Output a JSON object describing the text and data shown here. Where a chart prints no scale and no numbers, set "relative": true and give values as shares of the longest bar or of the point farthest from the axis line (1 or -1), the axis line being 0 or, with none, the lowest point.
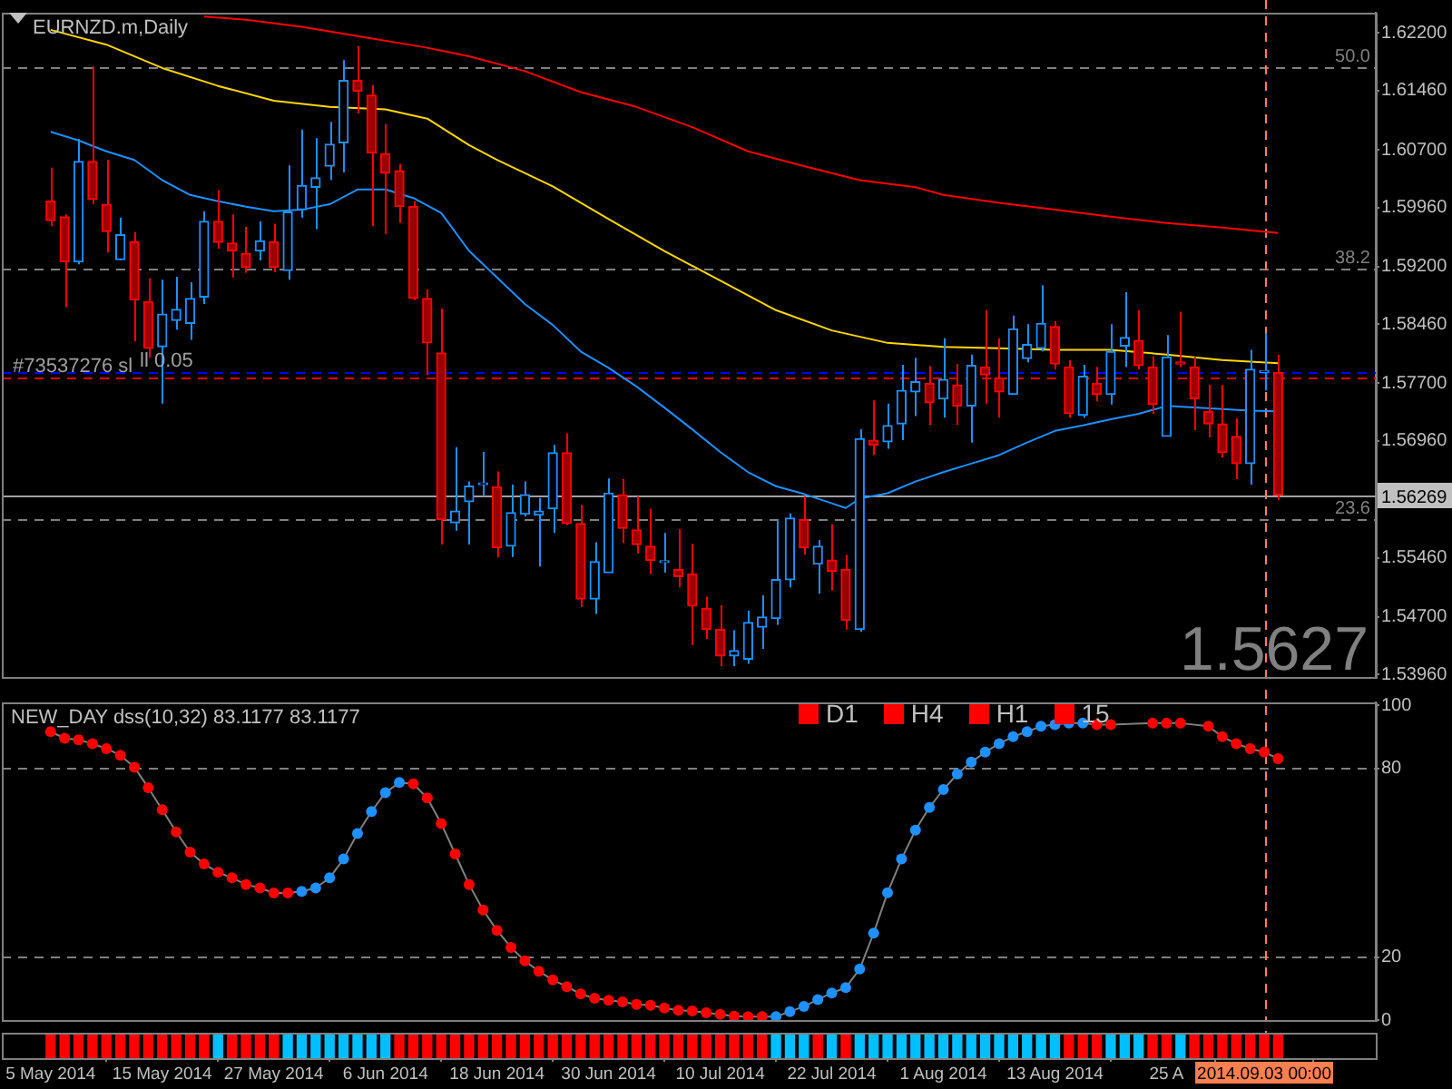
{
  "chart_data": [
    {
      "type": "candlestick",
      "title": "EURNZD.m,Daily",
      "tick_labels": "y",
      "marker": "none",
      "categories": [
        "5 May 2014",
        null,
        null,
        null,
        null,
        null,
        null,
        null,
        "15 May 2014",
        null,
        null,
        null,
        null,
        null,
        null,
        null,
        "27 May 2014",
        null,
        null,
        null,
        null,
        null,
        null,
        null,
        "6 Jun 2014",
        null,
        null,
        null,
        null,
        null,
        null,
        null,
        "18 Jun 2014",
        null,
        null,
        null,
        null,
        null,
        null,
        null,
        "30 Jun 2014",
        null,
        null,
        null,
        null,
        null,
        null,
        null,
        "10 Jul 2014",
        null,
        null,
        null,
        null,
        null,
        null,
        null,
        "22 Jul 2014",
        null,
        null,
        null,
        null,
        null,
        null,
        null,
        "1 Aug 2014",
        null,
        null,
        null,
        null,
        null,
        null,
        null,
        "13 Aug 2014",
        null,
        null,
        null,
        null,
        null,
        null,
        null,
        "25 A",
        null,
        null,
        null,
        null,
        null,
        null,
        "2014.09.03 00:00",
        null
      ],
      "ohlc": [
        [
          1.6004,
          1.6047,
          1.5972,
          1.5979
        ],
        [
          1.5984,
          1.5987,
          1.5868,
          1.5926
        ],
        [
          1.5926,
          1.6084,
          1.5923,
          1.6055
        ],
        [
          1.6055,
          1.6177,
          1.6,
          1.6006
        ],
        [
          1.6,
          1.6057,
          1.5938,
          1.5965
        ],
        [
          1.5929,
          1.5983,
          1.5928,
          1.5961
        ],
        [
          1.5952,
          1.5964,
          1.5824,
          1.5877
        ],
        [
          1.5875,
          1.5905,
          1.5803,
          1.5815
        ],
        [
          1.5817,
          1.5903,
          1.5744,
          1.5859
        ],
        [
          1.5851,
          1.5907,
          1.5839,
          1.5865
        ],
        [
          1.5847,
          1.59,
          1.5826,
          1.5879
        ],
        [
          1.5881,
          1.5991,
          1.5872,
          1.5978
        ],
        [
          1.5978,
          1.6018,
          1.5943,
          1.5951
        ],
        [
          1.595,
          1.5987,
          1.5906,
          1.594
        ],
        [
          1.5937,
          1.5971,
          1.5912,
          1.5919
        ],
        [
          1.594,
          1.5978,
          1.5928,
          1.5953
        ],
        [
          1.5952,
          1.5975,
          1.5913,
          1.5919
        ],
        [
          1.5915,
          1.605,
          1.5903,
          1.599
        ],
        [
          1.5993,
          1.6096,
          1.5983,
          1.6024
        ],
        [
          1.6022,
          1.6085,
          1.5968,
          1.6034
        ],
        [
          1.6049,
          1.6106,
          1.6031,
          1.6077
        ],
        [
          1.6079,
          1.6185,
          1.6041,
          1.6159
        ],
        [
          1.6159,
          1.6203,
          1.6117,
          1.6145
        ],
        [
          1.614,
          1.6153,
          1.5972,
          1.6066
        ],
        [
          1.6065,
          1.6103,
          1.5962,
          1.604
        ],
        [
          1.6043,
          1.6052,
          1.5976,
          1.5997
        ],
        [
          1.5997,
          1.6004,
          1.5877,
          1.5879
        ],
        [
          1.5879,
          1.5891,
          1.5781,
          1.5822
        ],
        [
          1.5809,
          1.5866,
          1.5563,
          1.5595
        ],
        [
          1.5591,
          1.5688,
          1.5581,
          1.5606
        ],
        [
          1.5618,
          1.5644,
          1.5563,
          1.5638
        ],
        [
          1.564,
          1.5682,
          1.5625,
          1.5642
        ],
        [
          1.5637,
          1.5657,
          1.5547,
          1.5559
        ],
        [
          1.5561,
          1.564,
          1.5547,
          1.5604
        ],
        [
          1.5602,
          1.5644,
          1.5599,
          1.5627
        ],
        [
          1.5601,
          1.5623,
          1.5535,
          1.5606
        ],
        [
          1.5609,
          1.5691,
          1.5578,
          1.5681
        ],
        [
          1.5681,
          1.5706,
          1.5588,
          1.559
        ],
        [
          1.559,
          1.5614,
          1.5483,
          1.5493
        ],
        [
          1.5493,
          1.5566,
          1.5474,
          1.5541
        ],
        [
          1.5527,
          1.5648,
          1.5527,
          1.5629
        ],
        [
          1.5627,
          1.5647,
          1.5565,
          1.5584
        ],
        [
          1.5582,
          1.5625,
          1.5552,
          1.5563
        ],
        [
          1.5561,
          1.5609,
          1.5525,
          1.5543
        ],
        [
          1.554,
          1.5578,
          1.5527,
          1.5541
        ],
        [
          1.5531,
          1.5583,
          1.5508,
          1.5522
        ],
        [
          1.5525,
          1.5564,
          1.5434,
          1.5484
        ],
        [
          1.5481,
          1.5496,
          1.5442,
          1.5454
        ],
        [
          1.5454,
          1.5485,
          1.5407,
          1.542
        ],
        [
          1.542,
          1.5453,
          1.5407,
          1.5427
        ],
        [
          1.5416,
          1.5478,
          1.541,
          1.5463
        ],
        [
          1.5457,
          1.5498,
          1.5429,
          1.547
        ],
        [
          1.5468,
          1.5595,
          1.546,
          1.5518
        ],
        [
          1.5518,
          1.5603,
          1.5508,
          1.5597
        ],
        [
          1.5595,
          1.5625,
          1.555,
          1.5559
        ],
        [
          1.5538,
          1.5569,
          1.55,
          1.5561
        ],
        [
          1.5543,
          1.5589,
          1.5504,
          1.5529
        ],
        [
          1.5531,
          1.555,
          1.5454,
          1.5466
        ],
        [
          1.5454,
          1.5711,
          1.5451,
          1.5699
        ],
        [
          1.5697,
          1.5748,
          1.5678,
          1.5691
        ],
        [
          1.5695,
          1.5744,
          1.5686,
          1.5716
        ],
        [
          1.5718,
          1.5794,
          1.5697,
          1.5761
        ],
        [
          1.5759,
          1.5803,
          1.5728,
          1.5772
        ],
        [
          1.577,
          1.5792,
          1.5717,
          1.5745
        ],
        [
          1.575,
          1.5828,
          1.5726,
          1.5775
        ],
        [
          1.5768,
          1.5795,
          1.5717,
          1.5741
        ],
        [
          1.5741,
          1.5807,
          1.5694,
          1.5793
        ],
        [
          1.5791,
          1.5864,
          1.5744,
          1.5781
        ],
        [
          1.5777,
          1.5828,
          1.5726,
          1.5759
        ],
        [
          1.5756,
          1.5857,
          1.5756,
          1.584
        ],
        [
          1.5802,
          1.5846,
          1.5797,
          1.582
        ],
        [
          1.5815,
          1.5896,
          1.5811,
          1.5847
        ],
        [
          1.5843,
          1.585,
          1.5788,
          1.5795
        ],
        [
          1.5791,
          1.58,
          1.5726,
          1.5731
        ],
        [
          1.5729,
          1.5794,
          1.5726,
          1.5779
        ],
        [
          1.577,
          1.5791,
          1.5747,
          1.5756
        ],
        [
          1.5756,
          1.5846,
          1.5743,
          1.5811
        ],
        [
          1.5818,
          1.5887,
          1.5791,
          1.5829
        ],
        [
          1.5825,
          1.5864,
          1.5788,
          1.5793
        ],
        [
          1.5791,
          1.5805,
          1.5731,
          1.5743
        ],
        [
          1.5702,
          1.5832,
          1.5702,
          1.5804
        ],
        [
          1.5797,
          1.5862,
          1.5791,
          1.5795
        ],
        [
          1.5791,
          1.5804,
          1.571,
          1.575
        ],
        [
          1.5734,
          1.5768,
          1.5701,
          1.5718
        ],
        [
          1.5718,
          1.5768,
          1.5675,
          1.5681
        ],
        [
          1.5702,
          1.5725,
          1.5647,
          1.5667
        ],
        [
          1.5667,
          1.5813,
          1.564,
          1.5788
        ],
        [
          1.5784,
          1.5834,
          1.5761,
          1.5786
        ],
        [
          1.5784,
          1.5807,
          1.562,
          1.56269
        ]
      ],
      "series": [
        {
          "type": "line",
          "color": "#1e90ff",
          "values": [
            1.6093,
            null,
            1.6082,
            null,
            1.6068,
            null,
            1.6057,
            null,
            1.6031,
            null,
            1.6012,
            null,
            1.6004,
            null,
            1.5997,
            null,
            1.5991,
            null,
            1.5993,
            null,
            1.6,
            null,
            1.6019,
            null,
            1.6019,
            null,
            1.6008,
            null,
            1.5989,
            null,
            1.594,
            null,
            1.5906,
            null,
            1.5872,
            null,
            1.5845,
            null,
            1.5811,
            null,
            1.579,
            null,
            1.5766,
            null,
            1.5739,
            null,
            1.5711,
            null,
            1.5682,
            null,
            1.5656,
            null,
            1.5638,
            null,
            1.5628,
            null,
            1.5616,
            1.561,
            1.5622,
            null,
            1.5629,
            null,
            1.5644,
            null,
            1.5656,
            null,
            1.5667,
            null,
            1.5678,
            null,
            1.5694,
            null,
            1.5709,
            null,
            1.5716,
            null,
            1.5724,
            null,
            1.5731,
            null,
            1.5741,
            null,
            1.5739,
            null,
            1.5737,
            null,
            1.5735,
            null,
            1.5734
          ]
        },
        {
          "type": "line",
          "color": "#ffd700",
          "values": [
            1.6224,
            null,
            null,
            null,
            1.6205,
            null,
            null,
            null,
            1.6175,
            null,
            null,
            null,
            1.6152,
            null,
            null,
            null,
            1.6133,
            null,
            null,
            null,
            1.6125,
            null,
            null,
            null,
            1.6122,
            null,
            null,
            1.611,
            null,
            null,
            1.6076,
            null,
            1.6057,
            null,
            null,
            null,
            1.6023,
            null,
            null,
            null,
            1.5981,
            null,
            null,
            null,
            1.594,
            null,
            null,
            null,
            1.5902,
            null,
            null,
            null,
            1.5864,
            null,
            null,
            null,
            1.5838,
            null,
            null,
            null,
            1.5822,
            null,
            null,
            null,
            1.5817,
            null,
            null,
            null,
            1.5815,
            null,
            null,
            null,
            1.5813,
            null,
            null,
            null,
            1.5813,
            null,
            null,
            null,
            1.5807,
            null,
            null,
            null,
            1.58,
            null,
            null,
            null,
            1.5796
          ]
        },
        {
          "type": "line",
          "color": "#ff0000",
          "values": [
            null,
            null,
            null,
            null,
            null,
            null,
            null,
            null,
            null,
            null,
            null,
            1.6241,
            null,
            null,
            1.6237,
            null,
            null,
            null,
            1.6228,
            null,
            null,
            null,
            1.6216,
            null,
            null,
            null,
            null,
            1.6201,
            null,
            null,
            1.619,
            null,
            null,
            null,
            1.6171,
            null,
            null,
            null,
            1.6144,
            null,
            null,
            null,
            1.6125,
            null,
            null,
            null,
            1.6099,
            null,
            null,
            null,
            1.6068,
            null,
            null,
            null,
            1.6049,
            null,
            null,
            null,
            1.6031,
            null,
            null,
            null,
            1.6022,
            null,
            1.6012,
            null,
            null,
            null,
            1.6002,
            null,
            null,
            null,
            1.5993,
            null,
            null,
            null,
            1.5984,
            null,
            null,
            null,
            1.5976,
            null,
            null,
            null,
            1.597,
            null,
            null,
            null,
            1.5963
          ]
        }
      ],
      "ylim": [
        1.5393,
        1.6246
      ],
      "yticks": [
        {
          "value": 1.622,
          "label": "1.62200"
        },
        {
          "value": 1.6146,
          "label": "1.61460"
        },
        {
          "value": 1.607,
          "label": "1.60700"
        },
        {
          "value": 1.5996,
          "label": "1.59960"
        },
        {
          "value": 1.592,
          "label": "1.59200"
        },
        {
          "value": 1.5846,
          "label": "1.58460"
        },
        {
          "value": 1.577,
          "label": "1.57700"
        },
        {
          "value": 1.5696,
          "label": "1.56960"
        },
        {
          "value": 1.5546,
          "label": "1.55460"
        },
        {
          "value": 1.547,
          "label": "1.54700"
        },
        {
          "value": 1.5396,
          "label": "1.53960"
        }
      ],
      "ref_lines": [
        {
          "axis": "y",
          "value": 1.6177,
          "color": "#808080",
          "line_style": "dashed"
        },
        {
          "axis": "y",
          "value": 1.5917,
          "color": "#808080",
          "line_style": "dashed"
        },
        {
          "axis": "y",
          "value": 1.5595,
          "color": "#808080",
          "line_style": "dashed"
        },
        {
          "axis": "y",
          "value": 1.56269,
          "label": "1.56269",
          "color": "#a0a0a0",
          "line_style": "solid"
        },
        {
          "axis": "y",
          "value": 1.5784,
          "label": "ll 0.05",
          "color": "#0000ff",
          "line_style": "dashed"
        },
        {
          "axis": "y",
          "value": 1.5777,
          "label": "#73537276 sl",
          "color": "#ff0000",
          "line_style": "dashed"
        },
        {
          "axis": "x",
          "value": "2014.09.03 00:00",
          "color": "#ff7f50",
          "line_style": "dashed"
        }
      ],
      "annotations": [
        "1.5627",
        {
          "text": "50.0",
          "y": 1.6177
        },
        {
          "text": "38.2",
          "y": 1.5917
        },
        {
          "text": "23.6",
          "y": 1.5595
        }
      ]
    },
    {
      "type": "line",
      "title": "NEW_DAY dss(10,32) 83.1177 83.1177",
      "tick_labels": "y",
      "marker": "circle",
      "categories": [
        "5 May 2014",
        null,
        null,
        null,
        null,
        null,
        null,
        null,
        "15 May 2014",
        null,
        null,
        null,
        null,
        null,
        null,
        null,
        "27 May 2014",
        null,
        null,
        null,
        null,
        null,
        null,
        null,
        "6 Jun 2014",
        null,
        null,
        null,
        null,
        null,
        null,
        null,
        "18 Jun 2014",
        null,
        null,
        null,
        null,
        null,
        null,
        null,
        "30 Jun 2014",
        null,
        null,
        null,
        null,
        null,
        null,
        null,
        "10 Jul 2014",
        null,
        null,
        null,
        null,
        null,
        null,
        null,
        "22 Jul 2014",
        null,
        null,
        null,
        null,
        null,
        null,
        null,
        "1 Aug 2014",
        null,
        null,
        null,
        null,
        null,
        null,
        null,
        "13 Aug 2014",
        null,
        null,
        null,
        null,
        null,
        null,
        null,
        "25 A",
        null,
        null,
        null,
        null,
        null,
        null,
        "2014.09.03 00:00",
        null
      ],
      "series": [
        {
          "color": "#808080",
          "values": [
            91.7,
            89.6,
            89.1,
            87.9,
            86.3,
            84.2,
            80.4,
            73.9,
            66.9,
            59.8,
            53.4,
            49.6,
            47.0,
            45.2,
            43.1,
            42.0,
            40.4,
            40.4,
            40.9,
            42.0,
            45.2,
            51.2,
            59.3,
            66.3,
            72.3,
            75.5,
            75.1,
            70.6,
            62.5,
            52.8,
            43.1,
            35.0,
            28.5,
            23.1,
            18.8,
            15.5,
            12.8,
            10.6,
            8.3,
            6.9,
            6.3,
            5.8,
            5.0,
            4.7,
            3.8,
            3.1,
            2.9,
            2.3,
            1.8,
            1.2,
            1.1,
            1.1,
            1.1,
            2.7,
            4.3,
            6.5,
            8.6,
            10.3,
            16.2,
            27.6,
            40.5,
            51.2,
            60.4,
            67.6,
            73.3,
            78.2,
            82.0,
            85.2,
            87.9,
            90.1,
            91.7,
            93.4,
            93.9,
            94.4,
            94.4,
            93.9,
            93.9,
            null,
            null,
            94.4,
            94.4,
            94.4,
            null,
            93.4,
            90.1,
            87.9,
            86.3,
            85.2,
            83.1177
          ],
          "colors": [
            "#ff0000",
            "#ff0000",
            "#ff0000",
            "#ff0000",
            "#ff0000",
            "#ff0000",
            "#ff0000",
            "#ff0000",
            "#ff0000",
            "#ff0000",
            "#ff0000",
            "#ff0000",
            "#ff0000",
            "#ff0000",
            "#ff0000",
            "#ff0000",
            "#ff0000",
            "#ff0000",
            "#1e90ff",
            "#1e90ff",
            "#1e90ff",
            "#1e90ff",
            "#1e90ff",
            "#1e90ff",
            "#1e90ff",
            "#1e90ff",
            "#ff0000",
            "#ff0000",
            "#ff0000",
            "#ff0000",
            "#ff0000",
            "#ff0000",
            "#ff0000",
            "#ff0000",
            "#ff0000",
            "#ff0000",
            "#ff0000",
            "#ff0000",
            "#ff0000",
            "#ff0000",
            "#ff0000",
            "#ff0000",
            "#ff0000",
            "#ff0000",
            "#ff0000",
            "#ff0000",
            "#ff0000",
            "#ff0000",
            "#ff0000",
            "#ff0000",
            "#ff0000",
            "#ff0000",
            "#1e90ff",
            "#1e90ff",
            "#1e90ff",
            "#1e90ff",
            "#1e90ff",
            "#1e90ff",
            "#1e90ff",
            "#1e90ff",
            "#1e90ff",
            "#1e90ff",
            "#1e90ff",
            "#1e90ff",
            "#1e90ff",
            "#1e90ff",
            "#1e90ff",
            "#1e90ff",
            "#1e90ff",
            "#1e90ff",
            "#1e90ff",
            "#1e90ff",
            "#1e90ff",
            "#1e90ff",
            "#1e90ff",
            "#ff0000",
            "#ff0000",
            "#ff0000",
            "#ff0000",
            "#ff0000",
            "#ff0000",
            "#ff0000",
            "#ff0000",
            "#ff0000",
            "#ff0000",
            "#ff0000",
            "#ff0000",
            "#ff0000",
            "#ff0000"
          ]
        }
      ],
      "ylim": [
        0,
        101
      ],
      "yticks": [
        0,
        20,
        80,
        100
      ],
      "ref_lines": [
        {
          "axis": "y",
          "value": 80,
          "color": "#808080",
          "line_style": "dashed"
        },
        {
          "axis": "y",
          "value": 20,
          "color": "#808080",
          "line_style": "dashed"
        },
        {
          "axis": "x",
          "value": "2014.09.03 00:00",
          "color": "#ff7f50",
          "line_style": "dashed"
        }
      ],
      "annotations": [
        "D1",
        "H4",
        "H1",
        "15"
      ]
    },
    {
      "type": "bar",
      "relative": true,
      "categories": [
        "5 May 2014",
        null,
        null,
        null,
        null,
        null,
        null,
        null,
        "15 May 2014",
        null,
        null,
        null,
        null,
        null,
        null,
        null,
        "27 May 2014",
        null,
        null,
        null,
        null,
        null,
        null,
        null,
        "6 Jun 2014",
        null,
        null,
        null,
        null,
        null,
        null,
        null,
        "18 Jun 2014",
        null,
        null,
        null,
        null,
        null,
        null,
        null,
        "30 Jun 2014",
        null,
        null,
        null,
        null,
        null,
        null,
        null,
        "10 Jul 2014",
        null,
        null,
        null,
        null,
        null,
        null,
        null,
        "22 Jul 2014",
        null,
        null,
        null,
        null,
        null,
        null,
        null,
        "1 Aug 2014",
        null,
        null,
        null,
        null,
        null,
        null,
        null,
        "13 Aug 2014",
        null,
        null,
        null,
        null,
        null,
        null,
        null,
        "25 A",
        null,
        null,
        null,
        null,
        null,
        null,
        "2014.09.03 00:00",
        null
      ],
      "values": [
        1,
        1,
        1,
        1,
        1,
        1,
        1,
        1,
        1,
        1,
        1,
        1,
        1,
        1,
        1,
        1,
        1,
        1,
        1,
        1,
        1,
        1,
        1,
        1,
        1,
        1,
        1,
        1,
        1,
        1,
        1,
        1,
        1,
        1,
        1,
        1,
        1,
        1,
        1,
        1,
        1,
        1,
        1,
        1,
        1,
        1,
        1,
        1,
        1,
        1,
        1,
        1,
        1,
        1,
        1,
        1,
        1,
        1,
        1,
        1,
        1,
        1,
        1,
        1,
        1,
        1,
        1,
        1,
        1,
        1,
        1,
        1,
        1,
        1,
        1,
        1,
        1,
        1,
        1,
        1,
        1,
        1,
        1,
        1,
        1,
        1,
        1,
        1,
        1
      ],
      "colors": [
        "#ff0000",
        "#ff0000",
        "#ff0000",
        "#ff0000",
        "#ff0000",
        "#ff0000",
        "#ff0000",
        "#ff0000",
        "#ff0000",
        "#ff0000",
        "#ff0000",
        "#ff0000",
        "#00bfff",
        "#ff0000",
        "#ff0000",
        "#ff0000",
        "#ff0000",
        "#00bfff",
        "#00bfff",
        "#00bfff",
        "#00bfff",
        "#00bfff",
        "#00bfff",
        "#00bfff",
        "#00bfff",
        "#ff0000",
        "#ff0000",
        "#ff0000",
        "#ff0000",
        "#ff0000",
        "#ff0000",
        "#ff0000",
        "#ff0000",
        "#ff0000",
        "#ff0000",
        "#ff0000",
        "#ff0000",
        "#ff0000",
        "#ff0000",
        "#ff0000",
        "#ff0000",
        "#ff0000",
        "#ff0000",
        "#ff0000",
        "#ff0000",
        "#ff0000",
        "#ff0000",
        "#ff0000",
        "#ff0000",
        "#ff0000",
        "#ff0000",
        "#ff0000",
        "#00bfff",
        "#00bfff",
        "#00bfff",
        "#ff0000",
        "#00bfff",
        "#ff0000",
        "#00bfff",
        "#00bfff",
        "#00bfff",
        "#00bfff",
        "#00bfff",
        "#00bfff",
        "#00bfff",
        "#00bfff",
        "#00bfff",
        "#00bfff",
        "#00bfff",
        "#00bfff",
        "#00bfff",
        "#00bfff",
        "#00bfff",
        "#ff0000",
        "#ff0000",
        "#ff0000",
        "#00bfff",
        "#00bfff",
        "#00bfff",
        "#ff0000",
        "#ff0000",
        "#00bfff",
        "#ff0000",
        "#ff0000",
        "#ff0000",
        "#ff0000",
        "#ff0000",
        "#ff0000",
        "#ff0000"
      ],
      "ref_lines": [
        {
          "axis": "x",
          "value": "2014.09.03 00:00",
          "color": "#ff7f50",
          "line_style": "dashed"
        }
      ]
    }
  ]
}
